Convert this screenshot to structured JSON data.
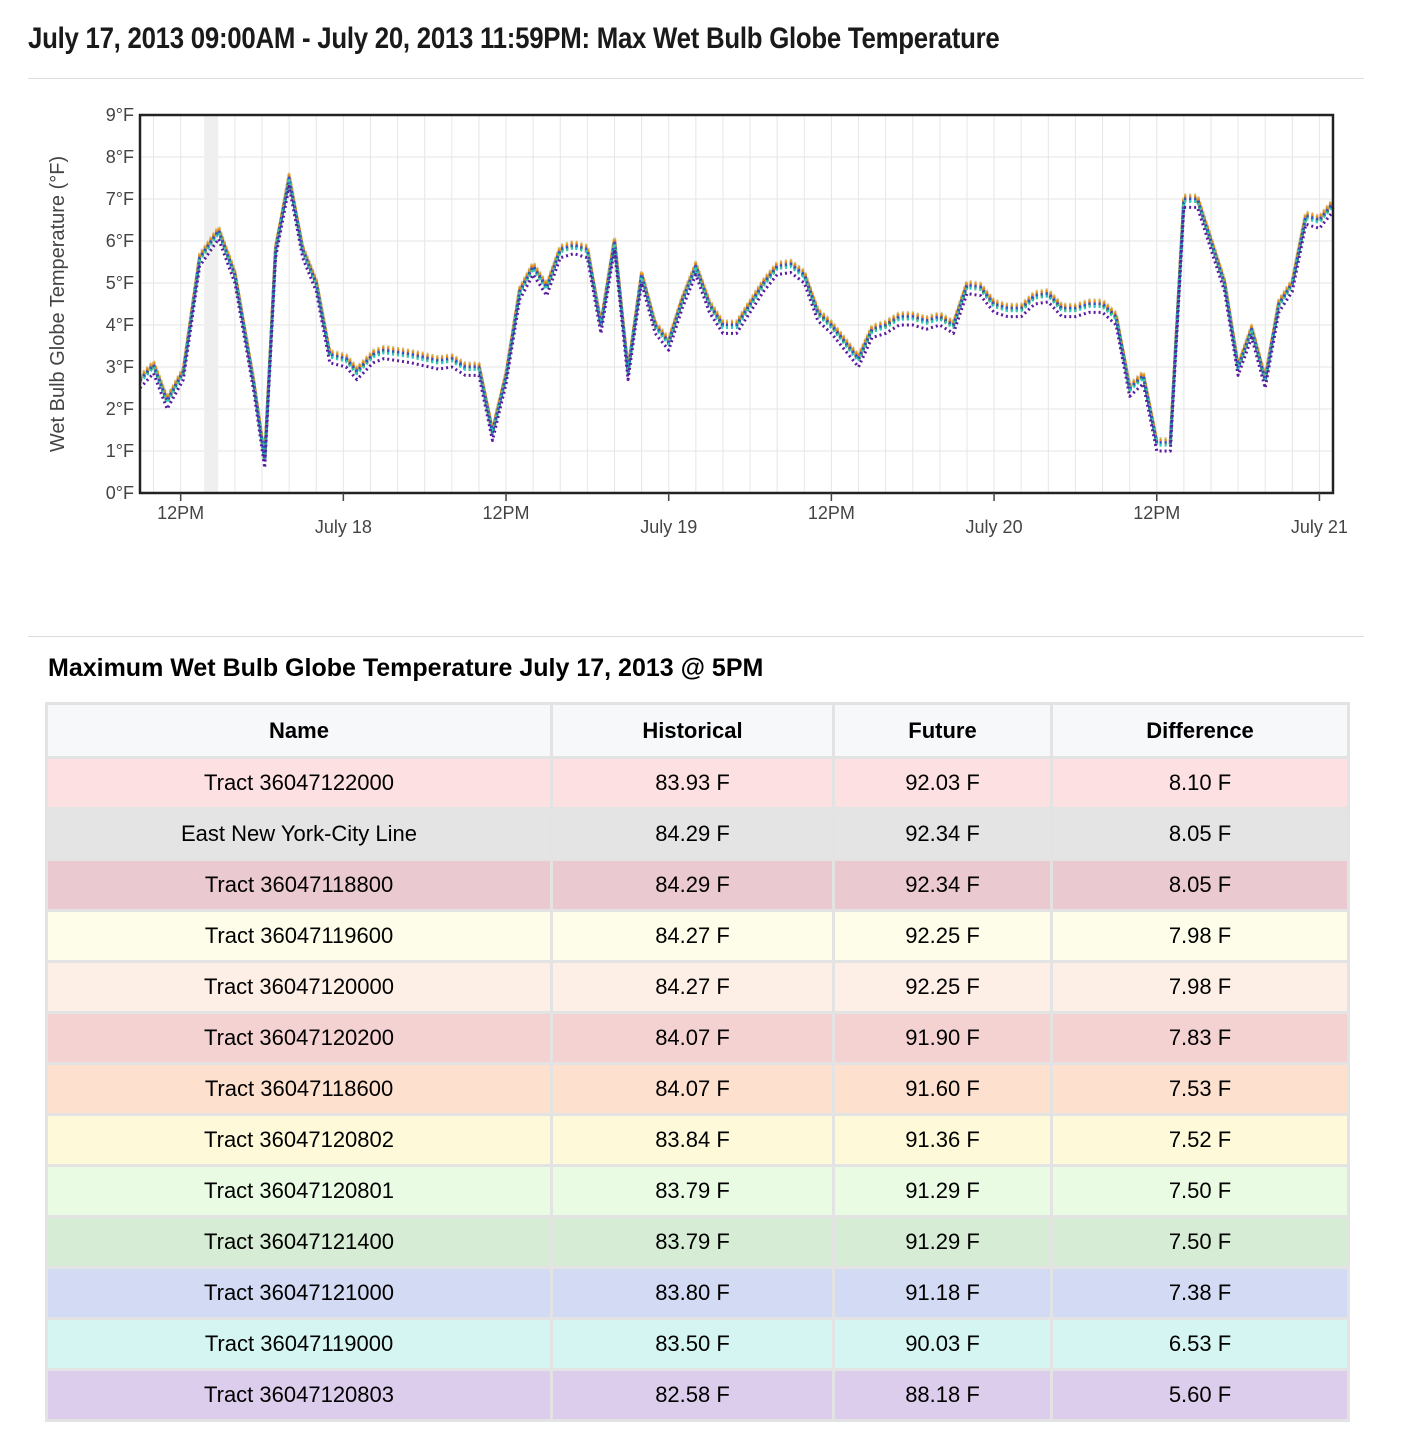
{
  "page": {
    "title": "July 17, 2013 09:00AM - July 20, 2013 11:59PM: Max Wet Bulb Globe Temperature"
  },
  "chart_data": {
    "type": "line",
    "title": "",
    "xlabel": "",
    "ylabel": "Wet Bulb Globe Temperature (°F)",
    "ylim": [
      0,
      9
    ],
    "yticks": [
      "0°F",
      "1°F",
      "2°F",
      "3°F",
      "4°F",
      "5°F",
      "6°F",
      "7°F",
      "8°F",
      "9°F"
    ],
    "xlim_hours_from": "2013-07-17 09:00",
    "xlim": [
      0,
      88
    ],
    "xticks": [
      {
        "hour": 3,
        "label": "12PM"
      },
      {
        "hour": 15,
        "label": "July 18"
      },
      {
        "hour": 27,
        "label": "12PM"
      },
      {
        "hour": 39,
        "label": "July 19"
      },
      {
        "hour": 51,
        "label": "12PM"
      },
      {
        "hour": 63,
        "label": "July 20"
      },
      {
        "hour": 75,
        "label": "12PM"
      },
      {
        "hour": 87,
        "label": "July 21"
      }
    ],
    "highlight_hour": 5.25,
    "grid": true,
    "line_style": "dotted",
    "base_series": [
      [
        0,
        2.7
      ],
      [
        0.5,
        3.05
      ],
      [
        1,
        2.2
      ],
      [
        1.6,
        2.9
      ],
      [
        2.2,
        5.6
      ],
      [
        2.9,
        6.25
      ],
      [
        3.5,
        5.2
      ],
      [
        4.2,
        2.6
      ],
      [
        4.6,
        0.8
      ],
      [
        5,
        5.8
      ],
      [
        5.5,
        7.5
      ],
      [
        6,
        5.8
      ],
      [
        6.5,
        5.0
      ],
      [
        7,
        3.3
      ],
      [
        7.6,
        3.2
      ],
      [
        8,
        2.9
      ],
      [
        8.6,
        3.3
      ],
      [
        9,
        3.4
      ],
      [
        10,
        3.3
      ],
      [
        11,
        3.15
      ],
      [
        11.5,
        3.2
      ],
      [
        12,
        3.0
      ],
      [
        12.5,
        3.0
      ],
      [
        13,
        1.45
      ],
      [
        13.5,
        2.8
      ],
      [
        14,
        4.8
      ],
      [
        14.5,
        5.4
      ],
      [
        15,
        4.9
      ],
      [
        15.5,
        5.8
      ],
      [
        16,
        5.9
      ],
      [
        16.5,
        5.8
      ],
      [
        17,
        4.0
      ],
      [
        17.5,
        6.0
      ],
      [
        18,
        2.9
      ],
      [
        18.5,
        5.2
      ],
      [
        19,
        4.0
      ],
      [
        19.5,
        3.6
      ],
      [
        20,
        4.6
      ],
      [
        20.5,
        5.4
      ],
      [
        21,
        4.5
      ],
      [
        21.5,
        4.0
      ],
      [
        22,
        4.0
      ],
      [
        22.5,
        4.5
      ],
      [
        23,
        5.0
      ],
      [
        23.5,
        5.4
      ],
      [
        24,
        5.45
      ],
      [
        24.5,
        5.2
      ],
      [
        25,
        4.3
      ],
      [
        25.5,
        4.0
      ],
      [
        26,
        3.6
      ],
      [
        26.5,
        3.2
      ],
      [
        27,
        3.9
      ],
      [
        27.5,
        4.0
      ],
      [
        28,
        4.2
      ],
      [
        28.5,
        4.2
      ],
      [
        29,
        4.1
      ],
      [
        29.5,
        4.2
      ],
      [
        30,
        4.0
      ],
      [
        30.5,
        4.95
      ],
      [
        31,
        4.9
      ],
      [
        31.5,
        4.5
      ],
      [
        32,
        4.4
      ],
      [
        32.5,
        4.4
      ],
      [
        33,
        4.7
      ],
      [
        33.5,
        4.75
      ],
      [
        34,
        4.4
      ],
      [
        34.5,
        4.4
      ],
      [
        35,
        4.5
      ],
      [
        35.5,
        4.5
      ],
      [
        36,
        4.2
      ],
      [
        36.5,
        2.5
      ],
      [
        37,
        2.8
      ],
      [
        37.5,
        1.2
      ],
      [
        38,
        1.2
      ],
      [
        38.5,
        7.0
      ],
      [
        39,
        7.0
      ],
      [
        39.5,
        6.0
      ],
      [
        40,
        5.0
      ],
      [
        40.5,
        3.0
      ],
      [
        41,
        3.9
      ],
      [
        41.5,
        2.7
      ],
      [
        42,
        4.5
      ],
      [
        42.5,
        5.0
      ],
      [
        43,
        6.6
      ],
      [
        43.5,
        6.5
      ],
      [
        44,
        6.9
      ],
      [
        44.5,
        7.1
      ]
    ],
    "series": [
      {
        "color": "#e8c7c7",
        "offset": 0.1
      },
      {
        "color": "#b8b8b8",
        "offset": 0.05
      },
      {
        "color": "#a0203a",
        "offset": 0.02
      },
      {
        "color": "#c8c040",
        "offset": 0.08
      },
      {
        "color": "#e09060",
        "offset": 0.03
      },
      {
        "color": "#c82020",
        "offset": -0.02
      },
      {
        "color": "#f08020",
        "offset": 0.05
      },
      {
        "color": "#d0b020",
        "offset": -0.05
      },
      {
        "color": "#80c040",
        "offset": 0.0
      },
      {
        "color": "#2a9a40",
        "offset": -0.03
      },
      {
        "color": "#3050c8",
        "offset": 0.0
      },
      {
        "color": "#30c8c0",
        "offset": -0.06
      },
      {
        "color": "#5a1aa0",
        "offset": -0.2
      }
    ]
  },
  "table": {
    "title": "Maximum Wet Bulb Globe Temperature July 17, 2013 @ 5PM",
    "headers": [
      "Name",
      "Historical",
      "Future",
      "Difference"
    ],
    "rows": [
      {
        "name": "Tract 36047122000",
        "historical": "83.93 F",
        "future": "92.03 F",
        "difference": "8.10 F",
        "color": "#fde0e2"
      },
      {
        "name": "East New York-City Line",
        "historical": "84.29 F",
        "future": "92.34 F",
        "difference": "8.05 F",
        "color": "#e4e4e4"
      },
      {
        "name": "Tract 36047118800",
        "historical": "84.29 F",
        "future": "92.34 F",
        "difference": "8.05 F",
        "color": "#eac9d0"
      },
      {
        "name": "Tract 36047119600",
        "historical": "84.27 F",
        "future": "92.25 F",
        "difference": "7.98 F",
        "color": "#fefde9"
      },
      {
        "name": "Tract 36047120000",
        "historical": "84.27 F",
        "future": "92.25 F",
        "difference": "7.98 F",
        "color": "#fdefe5"
      },
      {
        "name": "Tract 36047120200",
        "historical": "84.07 F",
        "future": "91.90 F",
        "difference": "7.83 F",
        "color": "#f5d2d2"
      },
      {
        "name": "Tract 36047118600",
        "historical": "84.07 F",
        "future": "91.60 F",
        "difference": "7.53 F",
        "color": "#fde0cd"
      },
      {
        "name": "Tract 36047120802",
        "historical": "83.84 F",
        "future": "91.36 F",
        "difference": "7.52 F",
        "color": "#fdf9d9"
      },
      {
        "name": "Tract 36047120801",
        "historical": "83.79 F",
        "future": "91.29 F",
        "difference": "7.50 F",
        "color": "#eafbe4"
      },
      {
        "name": "Tract 36047121400",
        "historical": "83.79 F",
        "future": "91.29 F",
        "difference": "7.50 F",
        "color": "#d6ecd5"
      },
      {
        "name": "Tract 36047121000",
        "historical": "83.80 F",
        "future": "91.18 F",
        "difference": "7.38 F",
        "color": "#d3daf4"
      },
      {
        "name": "Tract 36047119000",
        "historical": "83.50 F",
        "future": "90.03 F",
        "difference": "6.53 F",
        "color": "#d4f5f2"
      },
      {
        "name": "Tract 36047120803",
        "historical": "82.58 F",
        "future": "88.18 F",
        "difference": "5.60 F",
        "color": "#ddcded"
      }
    ]
  }
}
